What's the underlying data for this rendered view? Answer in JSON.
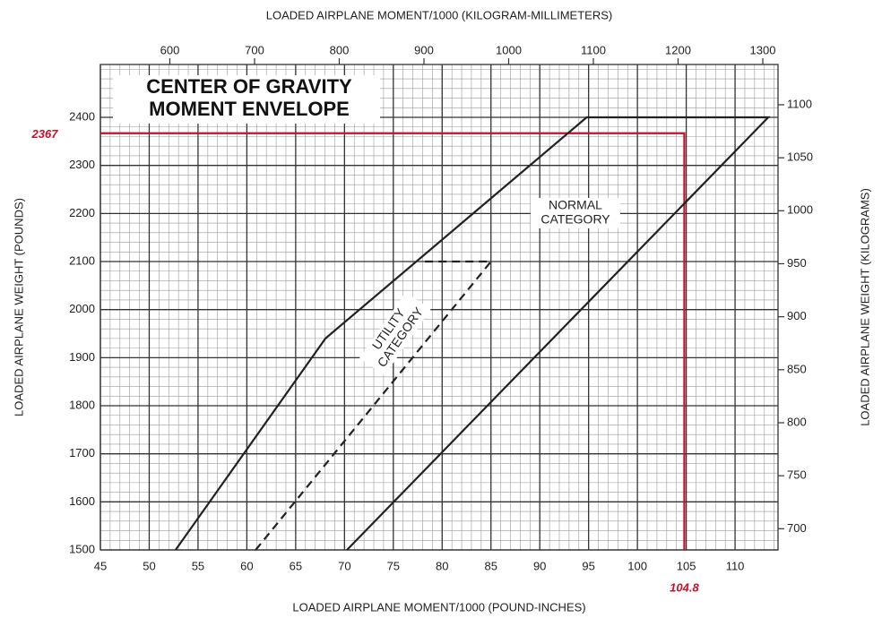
{
  "chart_data": {
    "type": "line",
    "title": [
      "CENTER OF GRAVITY",
      "MOMENT ENVELOPE"
    ],
    "xlabel": "LOADED AIRPLANE MOMENT/1000 (POUND-INCHES)",
    "x2label": "LOADED AIRPLANE MOMENT/1000 (KILOGRAM-MILLIMETERS)",
    "ylabel": "LOADED AIRPLANE WEIGHT (POUNDS)",
    "y2label": "LOADED AIRPLANE WEIGHT (KILOGRAMS)",
    "xlim": [
      45,
      114.4
    ],
    "xticks": [
      45,
      50,
      55,
      60,
      65,
      70,
      75,
      80,
      85,
      90,
      95,
      100,
      105,
      110
    ],
    "x2lim": [
      518,
      1318
    ],
    "x2ticks": [
      600,
      700,
      800,
      900,
      1000,
      1100,
      1200,
      1300
    ],
    "ylim": [
      1500,
      2510
    ],
    "yticks": [
      1500,
      1600,
      1700,
      1800,
      1900,
      2000,
      2100,
      2200,
      2300,
      2400
    ],
    "y2lim": [
      680,
      1138
    ],
    "y2ticks": [
      700,
      750,
      800,
      850,
      900,
      950,
      1000,
      1050,
      1100
    ],
    "grid": true,
    "series": [
      {
        "name": [
          "NORMAL",
          "CATEGORY"
        ],
        "color": "#222222",
        "dashed": false,
        "x": [
          52.7,
          68.05,
          94.8,
          113.4,
          70.25
        ],
        "values": [
          1500,
          1940,
          2400,
          2400,
          1500
        ]
      },
      {
        "name": [
          "UTILITY",
          "CATEGORY"
        ],
        "color": "#222222",
        "dashed": true,
        "x": [
          60.9,
          85,
          77.7
        ],
        "values": [
          1500,
          2100,
          2100
        ]
      }
    ],
    "reference": {
      "x": 104.8,
      "y": 2367,
      "color": "#c8102e"
    }
  }
}
